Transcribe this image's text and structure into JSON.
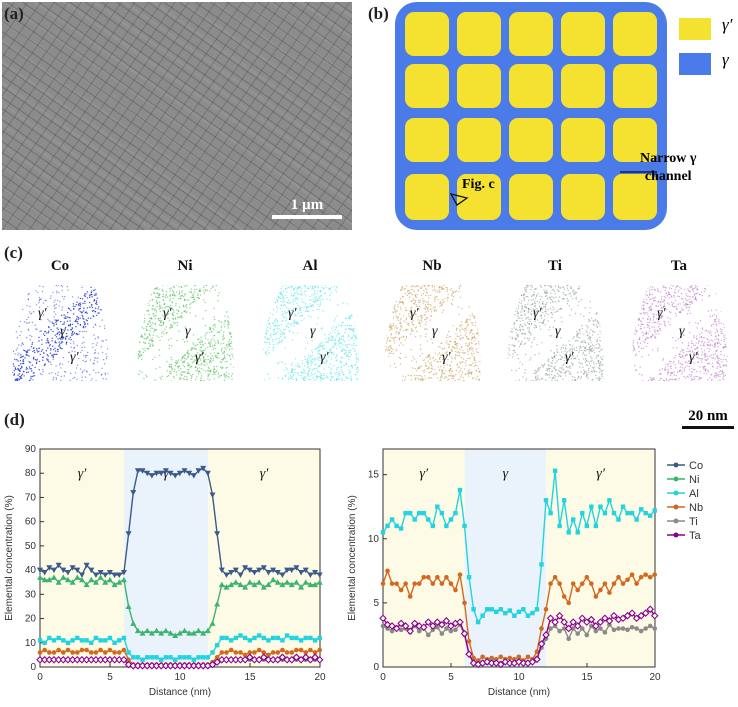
{
  "panels": {
    "a": {
      "label": "(a)",
      "scale_bar": "1 µm"
    },
    "b": {
      "label": "(b)",
      "legend": [
        {
          "symbol": "γ′",
          "color": "#f5e12f"
        },
        {
          "symbol": "γ",
          "color": "#4a7be8"
        }
      ],
      "annotation_channel": "Narrow γ",
      "annotation_channel2": "channel",
      "annotation_fig": "Fig. c"
    },
    "c": {
      "label": "(c)",
      "scale_bar": "20 nm",
      "elements": [
        {
          "name": "Co",
          "color": "#2b3fd1"
        },
        {
          "name": "Ni",
          "color": "#2fb23a"
        },
        {
          "name": "Al",
          "color": "#2fe0e8"
        },
        {
          "name": "Nb",
          "color": "#c08a3a"
        },
        {
          "name": "Ti",
          "color": "#7a8a88"
        },
        {
          "name": "Ta",
          "color": "#b060c0"
        }
      ],
      "phase_labels": {
        "gp": "γ′",
        "g": "γ"
      }
    },
    "d": {
      "label": "(d)"
    }
  },
  "chart_data": [
    {
      "type": "line",
      "title": "",
      "xlabel": "Distance (nm)",
      "ylabel": "Elemental concentration (%)",
      "xlim": [
        0,
        20
      ],
      "ylim": [
        0,
        90
      ],
      "xticks": [
        0,
        5,
        10,
        15,
        20
      ],
      "yticks": [
        0,
        10,
        20,
        30,
        40,
        50,
        60,
        70,
        80,
        90
      ],
      "regions": [
        {
          "label": "γ′",
          "from": 0,
          "to": 6,
          "color": "#fdfbe6"
        },
        {
          "label": "γ",
          "from": 6,
          "to": 12,
          "color": "#eaf2fb"
        },
        {
          "label": "γ′",
          "from": 12,
          "to": 20,
          "color": "#fdfbe6"
        }
      ],
      "series": [
        {
          "name": "Co",
          "color": "#3a5a8c",
          "marker": "tri-down",
          "values": [
            40,
            39,
            41,
            40,
            42,
            40,
            39,
            41,
            40,
            38,
            42,
            40,
            38,
            39,
            38,
            39,
            38,
            38,
            39,
            55,
            72,
            81,
            81,
            80,
            79,
            80,
            80,
            81,
            80,
            79,
            80,
            81,
            80,
            79,
            81,
            82,
            80,
            71,
            55,
            40,
            38,
            39,
            40,
            38,
            41,
            40,
            39,
            40,
            41,
            39,
            40,
            39,
            38,
            40,
            40,
            41,
            39,
            40,
            38,
            39,
            38
          ],
          "x_step": 0.333
        },
        {
          "name": "Ni",
          "color": "#3cb371",
          "marker": "tri-up",
          "values": [
            37,
            36,
            36,
            37,
            35,
            37,
            36,
            35,
            37,
            36,
            34,
            36,
            35,
            37,
            35,
            36,
            34,
            35,
            36,
            25,
            18,
            15,
            14,
            15,
            14,
            15,
            14,
            15,
            14,
            13,
            14,
            15,
            14,
            14,
            15,
            14,
            15,
            18,
            26,
            34,
            33,
            34,
            35,
            34,
            33,
            35,
            34,
            35,
            33,
            34,
            36,
            35,
            34,
            35,
            34,
            35,
            33,
            35,
            34,
            34,
            35
          ],
          "x_step": 0.333
        },
        {
          "name": "Al",
          "color": "#22d3e0",
          "marker": "square",
          "values": [
            11,
            10,
            12,
            11,
            12,
            11,
            10,
            11,
            12,
            11,
            11,
            10,
            12,
            11,
            11,
            12,
            10,
            11,
            12,
            6,
            4,
            4,
            3,
            4,
            4,
            4,
            3,
            4,
            4,
            3,
            4,
            4,
            4,
            3,
            4,
            4,
            4,
            6,
            9,
            12,
            12,
            11,
            12,
            13,
            12,
            11,
            12,
            13,
            12,
            11,
            12,
            12,
            11,
            13,
            12,
            12,
            11,
            12,
            12,
            11,
            12
          ],
          "x_step": 0.333
        },
        {
          "name": "Nb",
          "color": "#d2691e",
          "marker": "circle",
          "values": [
            6,
            7,
            6,
            6,
            7,
            6,
            7,
            6,
            6,
            7,
            7,
            6,
            6,
            7,
            6,
            7,
            6,
            6,
            7,
            3,
            1,
            1,
            1,
            1,
            1,
            1,
            1,
            1,
            1,
            1,
            1,
            1,
            1,
            1,
            1,
            1,
            1,
            2,
            4,
            6,
            6,
            7,
            6,
            6,
            5,
            6,
            6,
            7,
            6,
            5,
            6,
            6,
            7,
            6,
            6,
            7,
            7,
            6,
            7,
            6,
            7
          ],
          "x_step": 0.333
        },
        {
          "name": "Ti",
          "color": "#8a8a8a",
          "marker": "circle",
          "values": [
            3,
            3,
            3,
            3,
            3,
            3,
            3,
            3,
            3,
            3,
            3,
            3,
            3,
            3,
            3,
            3,
            3,
            3,
            3,
            1,
            0.5,
            0.5,
            0.5,
            0.5,
            0.5,
            0.5,
            0.5,
            0.5,
            0.5,
            0.5,
            0.5,
            0.5,
            0.5,
            0.5,
            0.5,
            0.5,
            0.5,
            1,
            2,
            3,
            3,
            3,
            3,
            3,
            3,
            3,
            3,
            3,
            3,
            3,
            3,
            3,
            3,
            3,
            3,
            3,
            3,
            3,
            3,
            3,
            3
          ],
          "x_step": 0.333
        },
        {
          "name": "Ta",
          "color": "#8b008b",
          "marker": "diamond",
          "values": [
            3,
            3,
            3,
            3,
            3,
            3,
            3,
            3,
            3,
            3,
            3,
            3,
            3,
            3,
            3,
            3,
            3,
            3,
            3,
            1,
            0.5,
            0.5,
            0.5,
            0.5,
            0.5,
            0.5,
            0.5,
            0.5,
            0.5,
            0.5,
            0.5,
            0.5,
            0.5,
            0.5,
            0.5,
            0.5,
            0.5,
            1,
            2,
            3,
            3,
            3,
            3,
            3,
            3,
            4,
            3,
            3,
            4,
            3,
            3,
            3,
            4,
            3,
            3,
            4,
            3,
            4,
            3,
            4,
            3
          ],
          "x_step": 0.333
        }
      ]
    },
    {
      "type": "line",
      "title": "",
      "xlabel": "Distance (nm)",
      "ylabel": "Elemental concentration (%)",
      "xlim": [
        0,
        20
      ],
      "ylim": [
        0,
        17
      ],
      "xticks": [
        0,
        5,
        10,
        15,
        20
      ],
      "yticks": [
        0,
        5,
        10,
        15
      ],
      "regions": [
        {
          "label": "γ′",
          "from": 0,
          "to": 6,
          "color": "#fdfbe6"
        },
        {
          "label": "γ",
          "from": 6,
          "to": 12,
          "color": "#eaf2fb"
        },
        {
          "label": "γ′",
          "from": 12,
          "to": 20,
          "color": "#fdfbe6"
        }
      ],
      "legend": [
        "Co",
        "Ni",
        "Al",
        "Nb",
        "Ti",
        "Ta"
      ],
      "series": [
        {
          "name": "Al",
          "color": "#22d3e0",
          "marker": "square",
          "values": [
            10.5,
            11,
            11.5,
            11,
            10.8,
            12,
            12,
            11.5,
            12,
            12,
            11.5,
            11,
            12.5,
            12,
            11,
            11.5,
            12,
            13.8,
            11,
            7,
            4.5,
            3.5,
            4,
            4.5,
            4.5,
            4.3,
            4.5,
            4.2,
            4.4,
            4,
            4.3,
            4.5,
            4,
            4.2,
            4.5,
            8,
            13,
            12,
            15.3,
            11,
            13,
            10.5,
            11.5,
            10.5,
            12,
            11,
            12.5,
            11,
            12.5,
            12,
            13,
            12,
            11.5,
            12.5,
            12,
            12,
            11.5,
            12.3,
            12,
            11.8,
            12.2
          ],
          "x_step": 0.333
        },
        {
          "name": "Nb",
          "color": "#d2691e",
          "marker": "circle",
          "values": [
            6.5,
            7.5,
            6.5,
            6.5,
            6,
            6.5,
            5.5,
            6.5,
            6.5,
            7,
            7,
            6.5,
            7,
            6.5,
            7,
            6.5,
            6,
            7.2,
            5,
            2,
            0.7,
            0.5,
            0.8,
            0.6,
            0.7,
            0.6,
            0.8,
            0.6,
            0.7,
            0.6,
            0.8,
            0.5,
            0.8,
            0.6,
            1.2,
            3,
            4.5,
            6.5,
            7,
            6.5,
            5.5,
            5,
            6.5,
            6,
            6.5,
            7,
            6.5,
            5.5,
            6,
            6.5,
            5.8,
            6.5,
            7,
            6.5,
            6.8,
            7.2,
            6.5,
            7,
            7.2,
            7,
            7.2
          ],
          "x_step": 0.333
        },
        {
          "name": "Ti",
          "color": "#8a8a8a",
          "marker": "circle",
          "values": [
            3.2,
            3,
            2.8,
            3.1,
            2.9,
            3,
            2.7,
            3.2,
            2.8,
            3,
            2.5,
            2.9,
            3.1,
            2.6,
            3,
            2.8,
            2.9,
            3.3,
            2.5,
            1,
            0.4,
            0.3,
            0.4,
            0.3,
            0.5,
            0.4,
            0.3,
            0.4,
            0.3,
            0.4,
            0.5,
            0.3,
            0.4,
            0.5,
            0.7,
            1.5,
            2.2,
            3,
            3.2,
            2.8,
            3,
            2.2,
            3,
            2.6,
            3,
            2.5,
            3.2,
            2.8,
            3,
            2.7,
            3.3,
            2.9,
            3,
            3,
            2.9,
            3.1,
            3,
            2.8,
            3,
            3.2,
            3
          ],
          "x_step": 0.333
        },
        {
          "name": "Ta",
          "color": "#8b008b",
          "marker": "diamond",
          "values": [
            3.8,
            3.3,
            3.2,
            3,
            3.4,
            3.2,
            2.8,
            3.4,
            3.2,
            3.1,
            3.5,
            3.2,
            3.5,
            3.3,
            3.6,
            3.2,
            3.4,
            3.5,
            2.6,
            1,
            0.3,
            0.2,
            0.3,
            0.4,
            0.3,
            0.3,
            0.2,
            0.4,
            0.3,
            0.3,
            0.4,
            0.3,
            0.3,
            0.4,
            0.6,
            1.8,
            2.5,
            3.8,
            3.5,
            4,
            3.5,
            3,
            3.5,
            3.2,
            3.8,
            3.5,
            3.7,
            3.2,
            3.5,
            3.8,
            3.6,
            4,
            3.7,
            3.8,
            4,
            4.2,
            3.8,
            4,
            4.2,
            4.5,
            4
          ],
          "x_step": 0.333
        }
      ]
    }
  ]
}
